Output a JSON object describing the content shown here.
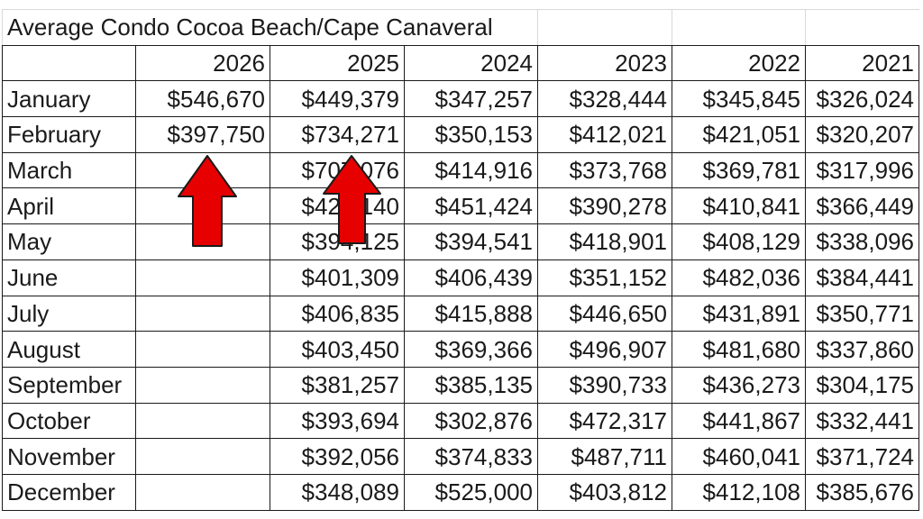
{
  "chart_data": {
    "type": "table",
    "title": "Average Condo Cocoa Beach/Cape Canaveral",
    "columns": [
      "2026",
      "2025",
      "2024",
      "2023",
      "2022",
      "2021"
    ],
    "rows": [
      {
        "month": "January",
        "values": [
          "$546,670",
          "$449,379",
          "$347,257",
          "$328,444",
          "$345,845",
          "$326,024"
        ]
      },
      {
        "month": "February",
        "values": [
          "$397,750",
          "$734,271",
          "$350,153",
          "$412,021",
          "$421,051",
          "$320,207"
        ]
      },
      {
        "month": "March",
        "values": [
          "",
          "$707,076",
          "$414,916",
          "$373,768",
          "$369,781",
          "$317,996"
        ]
      },
      {
        "month": "April",
        "values": [
          "",
          "$423,140",
          "$451,424",
          "$390,278",
          "$410,841",
          "$366,449"
        ]
      },
      {
        "month": "May",
        "values": [
          "",
          "$394,125",
          "$394,541",
          "$418,901",
          "$408,129",
          "$338,096"
        ]
      },
      {
        "month": "June",
        "values": [
          "",
          "$401,309",
          "$406,439",
          "$351,152",
          "$482,036",
          "$384,441"
        ]
      },
      {
        "month": "July",
        "values": [
          "",
          "$406,835",
          "$415,888",
          "$446,650",
          "$431,891",
          "$350,771"
        ]
      },
      {
        "month": "August",
        "values": [
          "",
          "$403,450",
          "$369,366",
          "$496,907",
          "$481,680",
          "$337,860"
        ]
      },
      {
        "month": "September",
        "values": [
          "",
          "$381,257",
          "$385,135",
          "$390,733",
          "$436,273",
          "$304,175"
        ]
      },
      {
        "month": "October",
        "values": [
          "",
          "$393,694",
          "$302,876",
          "$472,317",
          "$441,867",
          "$332,441"
        ]
      },
      {
        "month": "November",
        "values": [
          "",
          "$392,056",
          "$374,833",
          "$487,711",
          "$460,041",
          "$371,724"
        ]
      },
      {
        "month": "December",
        "values": [
          "",
          "$348,089",
          "$525,000",
          "$403,812",
          "$412,108",
          "$385,676"
        ]
      }
    ],
    "annotations": [
      {
        "type": "arrow",
        "points_to": "2026 February",
        "color": "#e60000"
      },
      {
        "type": "arrow",
        "points_to": "2025 February",
        "color": "#e60000"
      }
    ]
  }
}
